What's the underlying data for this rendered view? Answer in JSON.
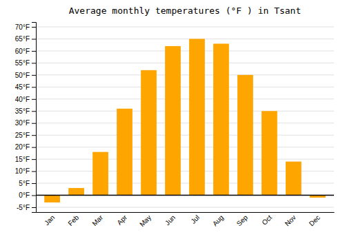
{
  "chart_data": {
    "type": "bar",
    "title": "Average monthly temperatures (°F ) in Tsant",
    "categories": [
      "Jan",
      "Feb",
      "Mar",
      "Apr",
      "May",
      "Jun",
      "Jul",
      "Aug",
      "Sep",
      "Oct",
      "Nov",
      "Dec"
    ],
    "values": [
      -3,
      3,
      18,
      36,
      52,
      62,
      65,
      63,
      50,
      35,
      14,
      -1
    ],
    "color": "#FFA500",
    "ylim": [
      -7,
      72
    ],
    "yticks": [
      {
        "value": -5,
        "label": "-5°F"
      },
      {
        "value": 0,
        "label": "0°F"
      },
      {
        "value": 5,
        "label": "5°F"
      },
      {
        "value": 10,
        "label": "10°F"
      },
      {
        "value": 15,
        "label": "15°F"
      },
      {
        "value": 20,
        "label": "20°F"
      },
      {
        "value": 25,
        "label": "25°F"
      },
      {
        "value": 30,
        "label": "30°F"
      },
      {
        "value": 35,
        "label": "35°F"
      },
      {
        "value": 40,
        "label": "40°F"
      },
      {
        "value": 45,
        "label": "45°F"
      },
      {
        "value": 50,
        "label": "50°F"
      },
      {
        "value": 55,
        "label": "55°F"
      },
      {
        "value": 60,
        "label": "60°F"
      },
      {
        "value": 65,
        "label": "65°F"
      },
      {
        "value": 70,
        "label": "70°F"
      }
    ],
    "grid": true
  }
}
